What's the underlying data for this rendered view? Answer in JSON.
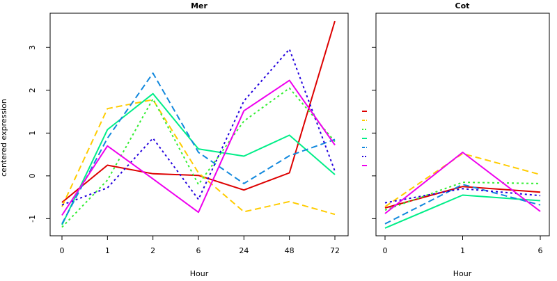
{
  "chart_data": [
    {
      "type": "line",
      "title": "Mer",
      "xlabel": "Hour",
      "ylabel": "centered expression",
      "categories": [
        "0",
        "1",
        "2",
        "6",
        "24",
        "48",
        "72"
      ],
      "ylim": [
        -1.4,
        3.8
      ],
      "yticks": [
        -1,
        0,
        1,
        2,
        3
      ],
      "series": [
        {
          "color": "#DD0000",
          "dash": "solid",
          "values": [
            -0.62,
            0.25,
            0.05,
            0.01,
            -0.33,
            0.07,
            3.62
          ]
        },
        {
          "color": "#FFCC00",
          "dash": "dashed",
          "values": [
            -0.72,
            1.57,
            1.78,
            0.07,
            -0.84,
            -0.6,
            -0.9
          ]
        },
        {
          "color": "#33EE33",
          "dash": "dotted",
          "values": [
            -1.2,
            -0.1,
            1.8,
            -0.2,
            1.28,
            2.05,
            0.8
          ]
        },
        {
          "color": "#00EE88",
          "dash": "solid",
          "values": [
            -1.15,
            1.08,
            1.92,
            0.63,
            0.46,
            0.95,
            0.03
          ]
        },
        {
          "color": "#1188DD",
          "dash": "dashed",
          "values": [
            -1.12,
            0.88,
            2.4,
            0.55,
            -0.18,
            0.47,
            0.85
          ]
        },
        {
          "color": "#2200DD",
          "dash": "dotted",
          "values": [
            -0.68,
            -0.28,
            0.88,
            -0.55,
            1.75,
            2.96,
            0.11
          ]
        },
        {
          "color": "#EE00EE",
          "dash": "solid",
          "values": [
            -0.92,
            0.7,
            -0.07,
            -0.85,
            1.52,
            2.23,
            0.72
          ]
        }
      ]
    },
    {
      "type": "line",
      "title": "Cot",
      "xlabel": "Hour",
      "ylabel": "",
      "categories": [
        "0",
        "1",
        "6"
      ],
      "ylim": [
        -1.4,
        3.8
      ],
      "yticks": [
        -1,
        0,
        1,
        2,
        3
      ],
      "series": [
        {
          "color": "#DD0000",
          "dash": "solid",
          "values": [
            -0.75,
            -0.25,
            -0.38
          ]
        },
        {
          "color": "#FFCC00",
          "dash": "dashed",
          "values": [
            -0.72,
            0.52,
            0.03
          ]
        },
        {
          "color": "#33EE33",
          "dash": "dotted",
          "values": [
            -0.8,
            -0.15,
            -0.18
          ]
        },
        {
          "color": "#00EE88",
          "dash": "solid",
          "values": [
            -1.22,
            -0.45,
            -0.58
          ]
        },
        {
          "color": "#1188DD",
          "dash": "dashed",
          "values": [
            -1.12,
            -0.2,
            -0.68
          ]
        },
        {
          "color": "#2200DD",
          "dash": "dotted",
          "values": [
            -0.63,
            -0.3,
            -0.46
          ]
        },
        {
          "color": "#EE00EE",
          "dash": "solid",
          "values": [
            -0.88,
            0.55,
            -0.83
          ]
        }
      ]
    }
  ],
  "legend": {
    "placement": "center",
    "items": [
      {
        "color": "#DD0000",
        "dash": "solid"
      },
      {
        "color": "#FFCC00",
        "dash": "dashed"
      },
      {
        "color": "#33EE33",
        "dash": "dotted"
      },
      {
        "color": "#00EE88",
        "dash": "solid"
      },
      {
        "color": "#1188DD",
        "dash": "dashed"
      },
      {
        "color": "#2200DD",
        "dash": "dotted"
      },
      {
        "color": "#EE00EE",
        "dash": "solid"
      }
    ]
  }
}
